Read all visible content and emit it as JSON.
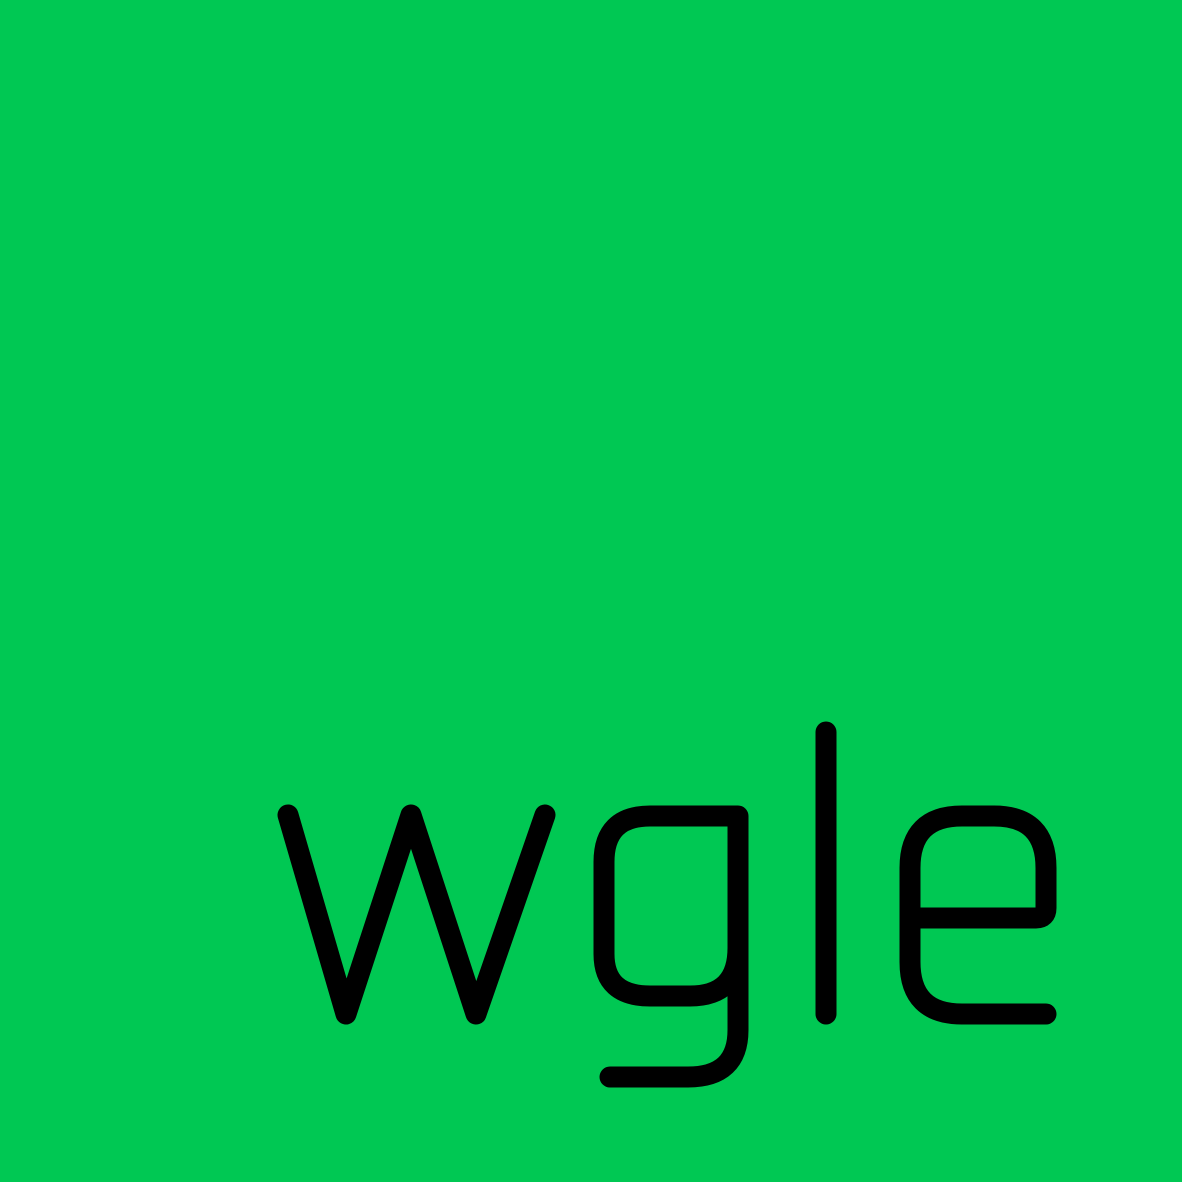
{
  "logo": {
    "wordmark": "wgle",
    "background_color": "#00c853",
    "text_color": "#000000"
  }
}
